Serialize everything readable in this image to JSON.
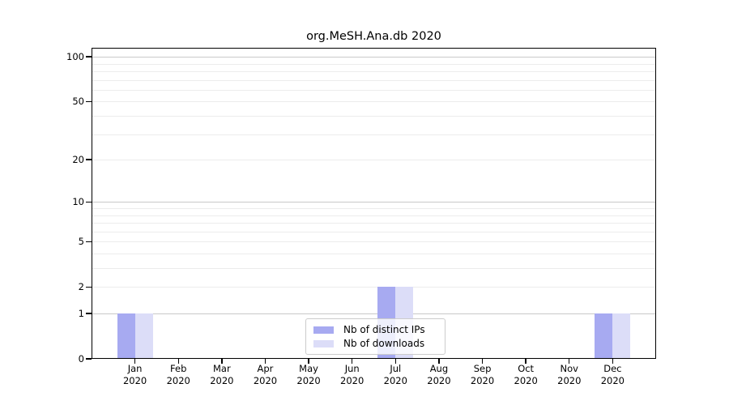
{
  "title": "org.MeSH.Ana.db 2020",
  "chart_data": {
    "type": "bar",
    "title": "org.MeSH.Ana.db 2020",
    "months": [
      "Jan",
      "Feb",
      "Mar",
      "Apr",
      "May",
      "Jun",
      "Jul",
      "Aug",
      "Sep",
      "Oct",
      "Nov",
      "Dec"
    ],
    "year": "2020",
    "categories": [
      "Jan 2020",
      "Feb 2020",
      "Mar 2020",
      "Apr 2020",
      "May 2020",
      "Jun 2020",
      "Jul 2020",
      "Aug 2020",
      "Sep 2020",
      "Oct 2020",
      "Nov 2020",
      "Dec 2020"
    ],
    "series": [
      {
        "name": "Nb of distinct IPs",
        "color": "#a7aaf1",
        "values": [
          1,
          0,
          0,
          0,
          0,
          0,
          2,
          0,
          0,
          0,
          0,
          1
        ]
      },
      {
        "name": "Nb of downloads",
        "color": "#dcddf8",
        "values": [
          1,
          0,
          0,
          0,
          0,
          0,
          2,
          0,
          0,
          0,
          0,
          1
        ]
      }
    ],
    "yscale": "log1p",
    "ylim": [
      0,
      115
    ],
    "yticks": [
      100,
      50,
      20,
      10,
      5,
      2,
      1,
      0
    ],
    "major_gridlines": [
      100,
      10,
      1
    ],
    "minor_gridlines": [
      90,
      80,
      70,
      60,
      50,
      40,
      30,
      20,
      9,
      8,
      7,
      6,
      5,
      4,
      3,
      2
    ],
    "grid_color_major": "#c9c9c9",
    "grid_color_minor": "#ececec",
    "legend_position": "bottom-center",
    "xlabel": "",
    "ylabel": ""
  }
}
